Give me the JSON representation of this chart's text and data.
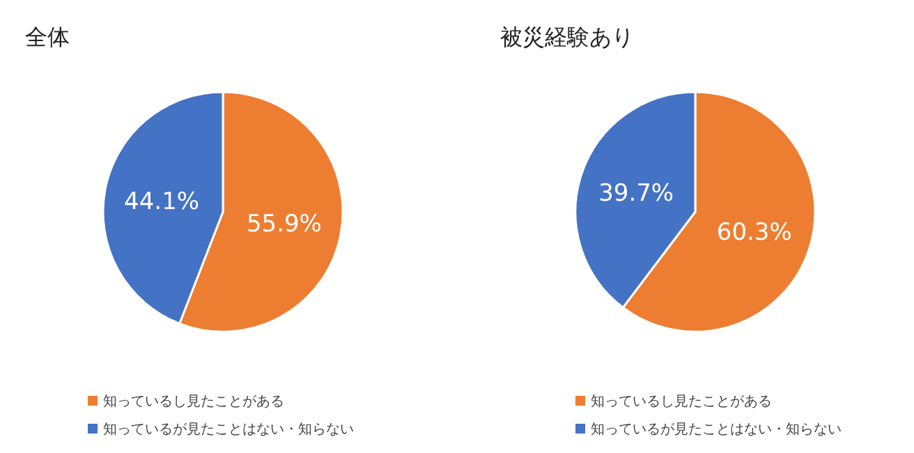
{
  "chart_data": [
    {
      "type": "pie",
      "title": "全体",
      "categories": [
        "知っているし見たことがある",
        "知っているが見たことはない・知らない"
      ],
      "values": [
        55.9,
        44.1
      ],
      "colors": [
        "#ed7d31",
        "#4472c4"
      ],
      "value_labels": [
        "55.9%",
        "44.1%"
      ],
      "legend": "bottom"
    },
    {
      "type": "pie",
      "title": "被災経験あり",
      "categories": [
        "知っているし見たことがある",
        "知っているが見たことはない・知らない"
      ],
      "values": [
        60.3,
        39.7
      ],
      "colors": [
        "#ed7d31",
        "#4472c4"
      ],
      "value_labels": [
        "60.3%",
        "39.7%"
      ],
      "legend": "bottom"
    }
  ]
}
